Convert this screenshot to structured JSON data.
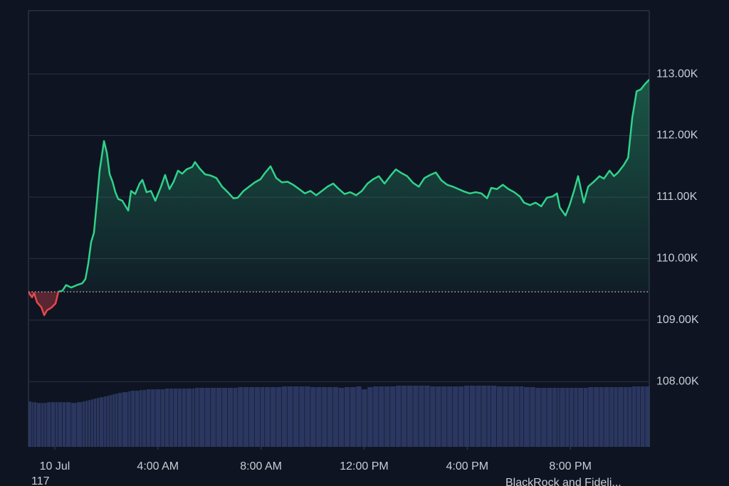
{
  "chart_data": {
    "type": "line",
    "x": [
      -1.02,
      -0.88,
      -0.8,
      -0.69,
      -0.52,
      -0.41,
      -0.3,
      -0.14,
      0.03,
      0.14,
      0.3,
      0.44,
      0.64,
      0.86,
      1.07,
      1.19,
      1.3,
      1.41,
      1.52,
      1.63,
      1.74,
      1.91,
      2.02,
      2.13,
      2.24,
      2.35,
      2.46,
      2.62,
      2.85,
      2.96,
      3.12,
      3.29,
      3.4,
      3.56,
      3.73,
      3.9,
      4.12,
      4.28,
      4.45,
      4.61,
      4.78,
      4.94,
      5.11,
      5.33,
      5.44,
      5.61,
      5.83,
      6.05,
      6.27,
      6.49,
      6.71,
      6.93,
      7.1,
      7.32,
      7.54,
      7.76,
      7.98,
      8.15,
      8.37,
      8.59,
      8.81,
      9.03,
      9.25,
      9.48,
      9.7,
      9.92,
      10.14,
      10.36,
      10.58,
      10.8,
      11.02,
      11.24,
      11.46,
      11.69,
      11.91,
      12.13,
      12.35,
      12.57,
      12.79,
      13.01,
      13.23,
      13.45,
      13.67,
      13.9,
      14.12,
      14.34,
      14.56,
      14.78,
      15.0,
      15.22,
      15.44,
      15.66,
      15.88,
      16.1,
      16.33,
      16.55,
      16.77,
      16.93,
      17.15,
      17.38,
      17.6,
      17.82,
      18.04,
      18.2,
      18.43,
      18.65,
      18.87,
      19.09,
      19.31,
      19.48,
      19.59,
      19.81,
      19.97,
      20.14,
      20.3,
      20.52,
      20.69,
      20.91,
      21.13,
      21.3,
      21.52,
      21.69,
      21.85,
      22.07,
      22.24,
      22.4,
      22.57,
      22.73,
      22.9,
      23.06
    ],
    "values": [
      109.45,
      109.37,
      109.44,
      109.29,
      109.21,
      109.08,
      109.16,
      109.2,
      109.27,
      109.46,
      109.48,
      109.57,
      109.53,
      109.57,
      109.6,
      109.67,
      109.92,
      110.27,
      110.42,
      110.91,
      111.43,
      111.91,
      111.72,
      111.37,
      111.25,
      111.08,
      110.97,
      110.94,
      110.78,
      111.1,
      111.05,
      111.22,
      111.28,
      111.08,
      111.1,
      110.94,
      111.17,
      111.36,
      111.13,
      111.25,
      111.43,
      111.38,
      111.45,
      111.49,
      111.57,
      111.47,
      111.37,
      111.35,
      111.31,
      111.17,
      111.08,
      110.98,
      110.99,
      111.1,
      111.17,
      111.24,
      111.29,
      111.39,
      111.5,
      111.31,
      111.24,
      111.25,
      111.2,
      111.13,
      111.06,
      111.1,
      111.03,
      111.1,
      111.17,
      111.22,
      111.13,
      111.05,
      111.08,
      111.03,
      111.1,
      111.22,
      111.29,
      111.34,
      111.22,
      111.34,
      111.45,
      111.39,
      111.34,
      111.23,
      111.17,
      111.31,
      111.36,
      111.4,
      111.27,
      111.2,
      111.17,
      111.13,
      111.09,
      111.06,
      111.08,
      111.06,
      110.98,
      111.15,
      111.13,
      111.2,
      111.13,
      111.08,
      111.01,
      110.91,
      110.87,
      110.91,
      110.85,
      110.99,
      111.01,
      111.06,
      110.83,
      110.7,
      110.87,
      111.1,
      111.34,
      110.91,
      111.17,
      111.25,
      111.34,
      111.3,
      111.43,
      111.34,
      111.4,
      111.52,
      111.64,
      112.29,
      112.72,
      112.75,
      112.84,
      112.91
    ],
    "volume": [
      63,
      62,
      62,
      61,
      61,
      61,
      62,
      62,
      62,
      62,
      62,
      62,
      61,
      62,
      63,
      64,
      65,
      66,
      67,
      68,
      69,
      70,
      71,
      72,
      73,
      74,
      75,
      76,
      77,
      78,
      78,
      79,
      79,
      80,
      80,
      80,
      80,
      81,
      81,
      81,
      81,
      81,
      81,
      81,
      82,
      82,
      82,
      82,
      82,
      82,
      82,
      82,
      83,
      83,
      83,
      83,
      83,
      83,
      83,
      83,
      84,
      84,
      84,
      84,
      84,
      83,
      83,
      83,
      83,
      83,
      82,
      83,
      83,
      84,
      80,
      83,
      84,
      84,
      84,
      84,
      85,
      85,
      85,
      85,
      85,
      85,
      84,
      84,
      84,
      84,
      84,
      84,
      85,
      85,
      85,
      85,
      85,
      85,
      84,
      84,
      84,
      84,
      84,
      83,
      83,
      82,
      82,
      82,
      82,
      82,
      82,
      82,
      82,
      82,
      82,
      82,
      83,
      83,
      83,
      83,
      83,
      83,
      83,
      83,
      83,
      84,
      84,
      84,
      84,
      85
    ],
    "baseline": 109.46,
    "color_up": "#2fd38a",
    "color_down": "#e5484d",
    "volume_color": "#2b3760",
    "xlim": [
      -1.02,
      23.06
    ],
    "xticks": [
      {
        "value": 0,
        "label": "10 Jul"
      },
      {
        "value": 4,
        "label": "4:00 AM"
      },
      {
        "value": 8,
        "label": "8:00 AM"
      },
      {
        "value": 12,
        "label": "12:00 PM"
      },
      {
        "value": 16,
        "label": "4:00 PM"
      },
      {
        "value": 20,
        "label": "8:00 PM"
      }
    ],
    "ylim": [
      106.94,
      114.03
    ],
    "yticks": [
      {
        "value": 108,
        "label": "108.00K"
      },
      {
        "value": 109,
        "label": "109.00K"
      },
      {
        "value": 110,
        "label": "110.00K"
      },
      {
        "value": 111,
        "label": "111.00K"
      },
      {
        "value": 112,
        "label": "112.00K"
      },
      {
        "value": 113,
        "label": "113.00K"
      }
    ],
    "grid": true
  },
  "footer": {
    "left": "117",
    "right": "BlackRock and Fideli..."
  }
}
